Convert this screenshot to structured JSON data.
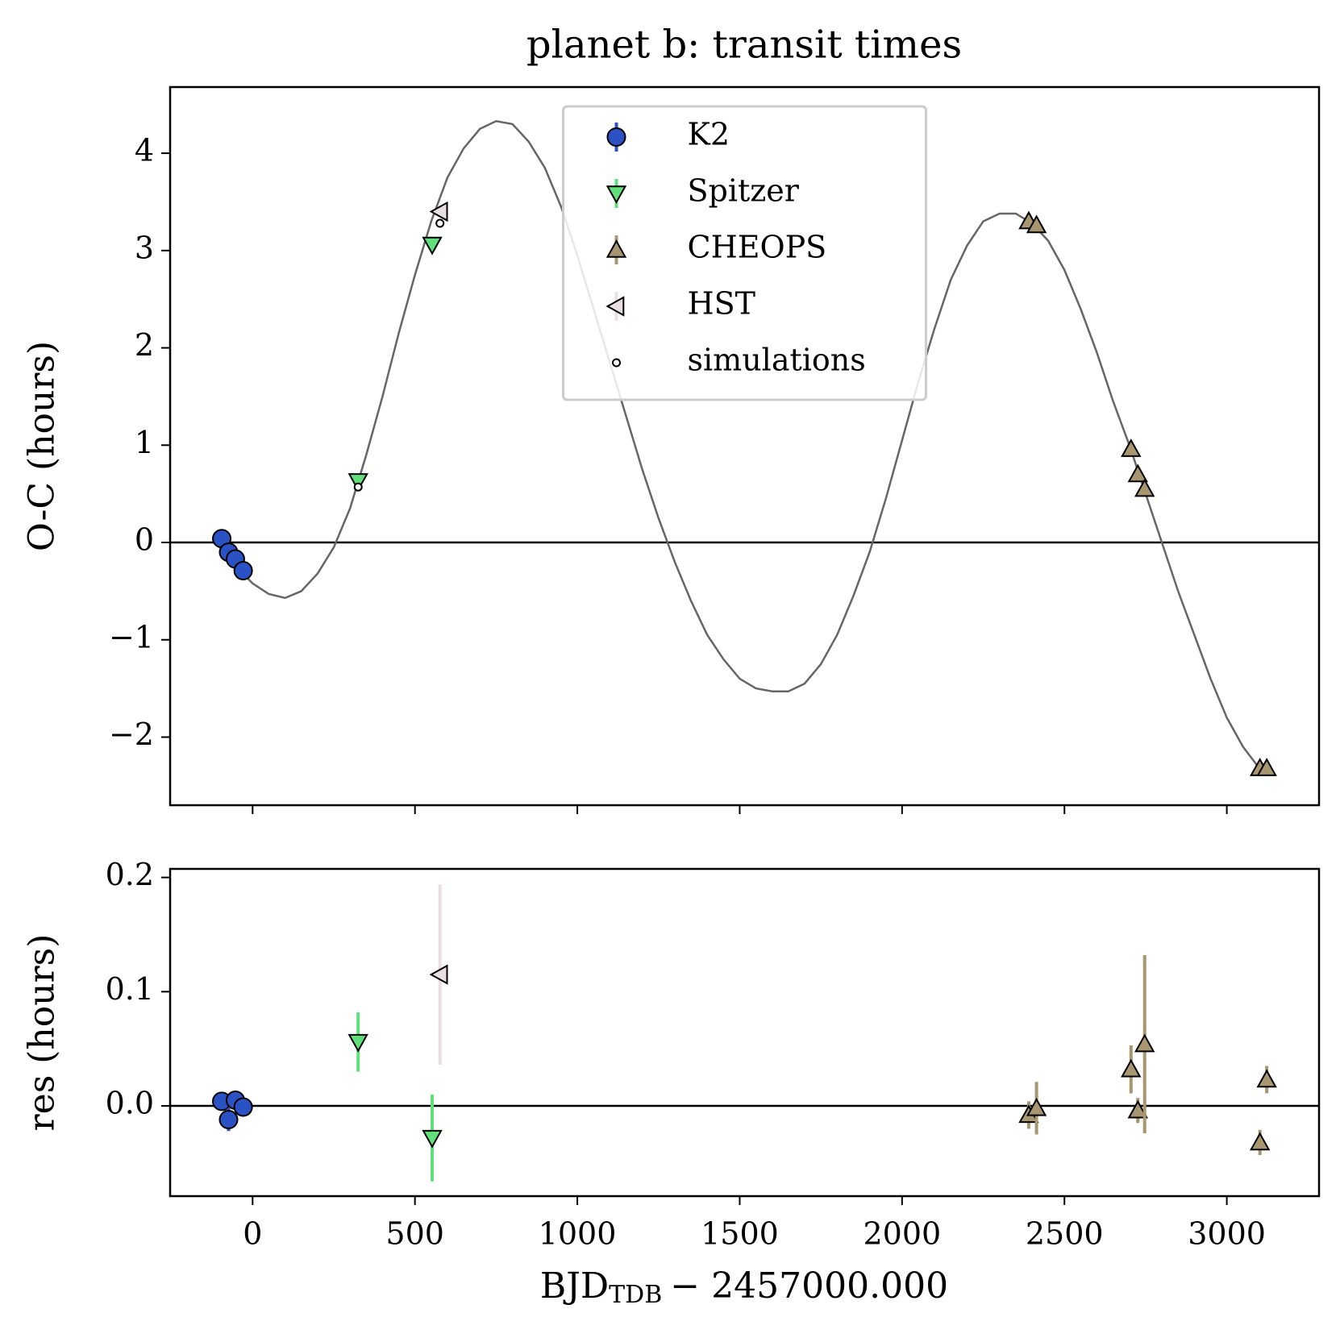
{
  "chart_data": [
    {
      "type": "scatter",
      "title": "planet b: transit times",
      "ylabel": "O-C (hours)",
      "xlim": [
        -254,
        3284
      ],
      "xticks": [
        0,
        500,
        1000,
        1500,
        2000,
        2500,
        3000
      ],
      "ylim": [
        -2.7,
        4.68
      ],
      "yticks": [
        {
          "value": -2,
          "label": "−2"
        },
        {
          "value": -1,
          "label": "−1"
        },
        0,
        1,
        2,
        3,
        4
      ],
      "legend": "upper center",
      "series": [
        {
          "name": "K2",
          "color": "#2a52c4",
          "marker": "circle",
          "x": [
            -95,
            -74,
            -53,
            -29
          ],
          "values": [
            0.04,
            -0.1,
            -0.17,
            -0.29
          ]
        },
        {
          "name": "Spitzer",
          "color": "#5fe07a",
          "marker": "triangle-down",
          "x": [
            325,
            553
          ],
          "values": [
            0.63,
            3.06
          ]
        },
        {
          "name": "CHEOPS",
          "color": "#a89670",
          "marker": "triangle-up",
          "x": [
            2390,
            2414,
            2705,
            2726,
            2747,
            3102,
            3123
          ],
          "values": [
            3.3,
            3.26,
            0.96,
            0.7,
            0.55,
            -2.32,
            -2.32
          ]
        },
        {
          "name": "HST",
          "color": "#e9dfe1",
          "marker": "triangle-left",
          "x": [
            577
          ],
          "values": [
            3.4
          ]
        },
        {
          "name": "simulations",
          "color": "#000000",
          "marker": "small-circle",
          "x": [
            325,
            577
          ],
          "values": [
            0.57,
            3.28
          ]
        }
      ],
      "curve": {
        "color": "#666666",
        "x": [
          -95,
          -50,
          0,
          50,
          100,
          150,
          200,
          250,
          300,
          350,
          400,
          450,
          500,
          550,
          600,
          650,
          700,
          750,
          800,
          850,
          900,
          950,
          1000,
          1050,
          1100,
          1150,
          1200,
          1250,
          1300,
          1350,
          1400,
          1450,
          1500,
          1550,
          1600,
          1650,
          1700,
          1750,
          1800,
          1850,
          1900,
          1950,
          2000,
          2050,
          2100,
          2150,
          2200,
          2250,
          2300,
          2350,
          2400,
          2450,
          2500,
          2550,
          2600,
          2650,
          2700,
          2750,
          2800,
          2850,
          2900,
          2950,
          3000,
          3050,
          3100,
          3125
        ],
        "values": [
          0.04,
          -0.25,
          -0.42,
          -0.53,
          -0.57,
          -0.5,
          -0.32,
          -0.05,
          0.35,
          0.9,
          1.5,
          2.15,
          2.75,
          3.3,
          3.75,
          4.05,
          4.25,
          4.33,
          4.3,
          4.12,
          3.85,
          3.45,
          2.95,
          2.4,
          1.85,
          1.3,
          0.75,
          0.25,
          -0.2,
          -0.6,
          -0.95,
          -1.2,
          -1.4,
          -1.5,
          -1.53,
          -1.53,
          -1.45,
          -1.25,
          -0.95,
          -0.55,
          -0.1,
          0.45,
          1.05,
          1.65,
          2.2,
          2.7,
          3.05,
          3.3,
          3.38,
          3.38,
          3.28,
          3.1,
          2.8,
          2.4,
          1.95,
          1.45,
          1.0,
          0.5,
          0.0,
          -0.5,
          -0.95,
          -1.4,
          -1.8,
          -2.1,
          -2.32,
          -2.35
        ]
      }
    },
    {
      "type": "errorbar",
      "ylabel": "res (hours)",
      "xlabel": {
        "main": "BJD",
        "sub": "TDB",
        "rest": "− 2457000.000"
      },
      "xlim": [
        -254,
        3284
      ],
      "xticks": [
        0,
        500,
        1000,
        1500,
        2000,
        2500,
        3000
      ],
      "ylim": [
        -0.079,
        0.2075
      ],
      "yticks": [
        {
          "value": 0,
          "label": "0.0"
        },
        0.1,
        0.2
      ],
      "series": [
        {
          "color": "#2a52c4",
          "marker": "circle",
          "x": [
            -95,
            -74,
            -53,
            -29
          ],
          "values": [
            0.004,
            -0.012,
            0.005,
            -0.001
          ],
          "errors": [
            0.004,
            0.01,
            0.004,
            0.004
          ]
        },
        {
          "color": "#5fe07a",
          "marker": "triangle-down",
          "x": [
            325,
            553
          ],
          "values": [
            0.056,
            -0.028
          ],
          "errors": [
            0.026,
            0.038
          ]
        },
        {
          "color": "#a89670",
          "marker": "triangle-up",
          "x": [
            2390,
            2414,
            2705,
            2726,
            2747,
            3102,
            3123
          ],
          "values": [
            -0.008,
            -0.002,
            0.032,
            -0.004,
            0.054,
            -0.032,
            0.023
          ],
          "errors": [
            0.012,
            0.023,
            0.021,
            0.011,
            0.078,
            0.011,
            0.012
          ]
        },
        {
          "color": "#e9dfe1",
          "marker": "triangle-left",
          "x": [
            577
          ],
          "values": [
            0.115
          ],
          "errors": [
            0.079
          ]
        }
      ]
    }
  ]
}
